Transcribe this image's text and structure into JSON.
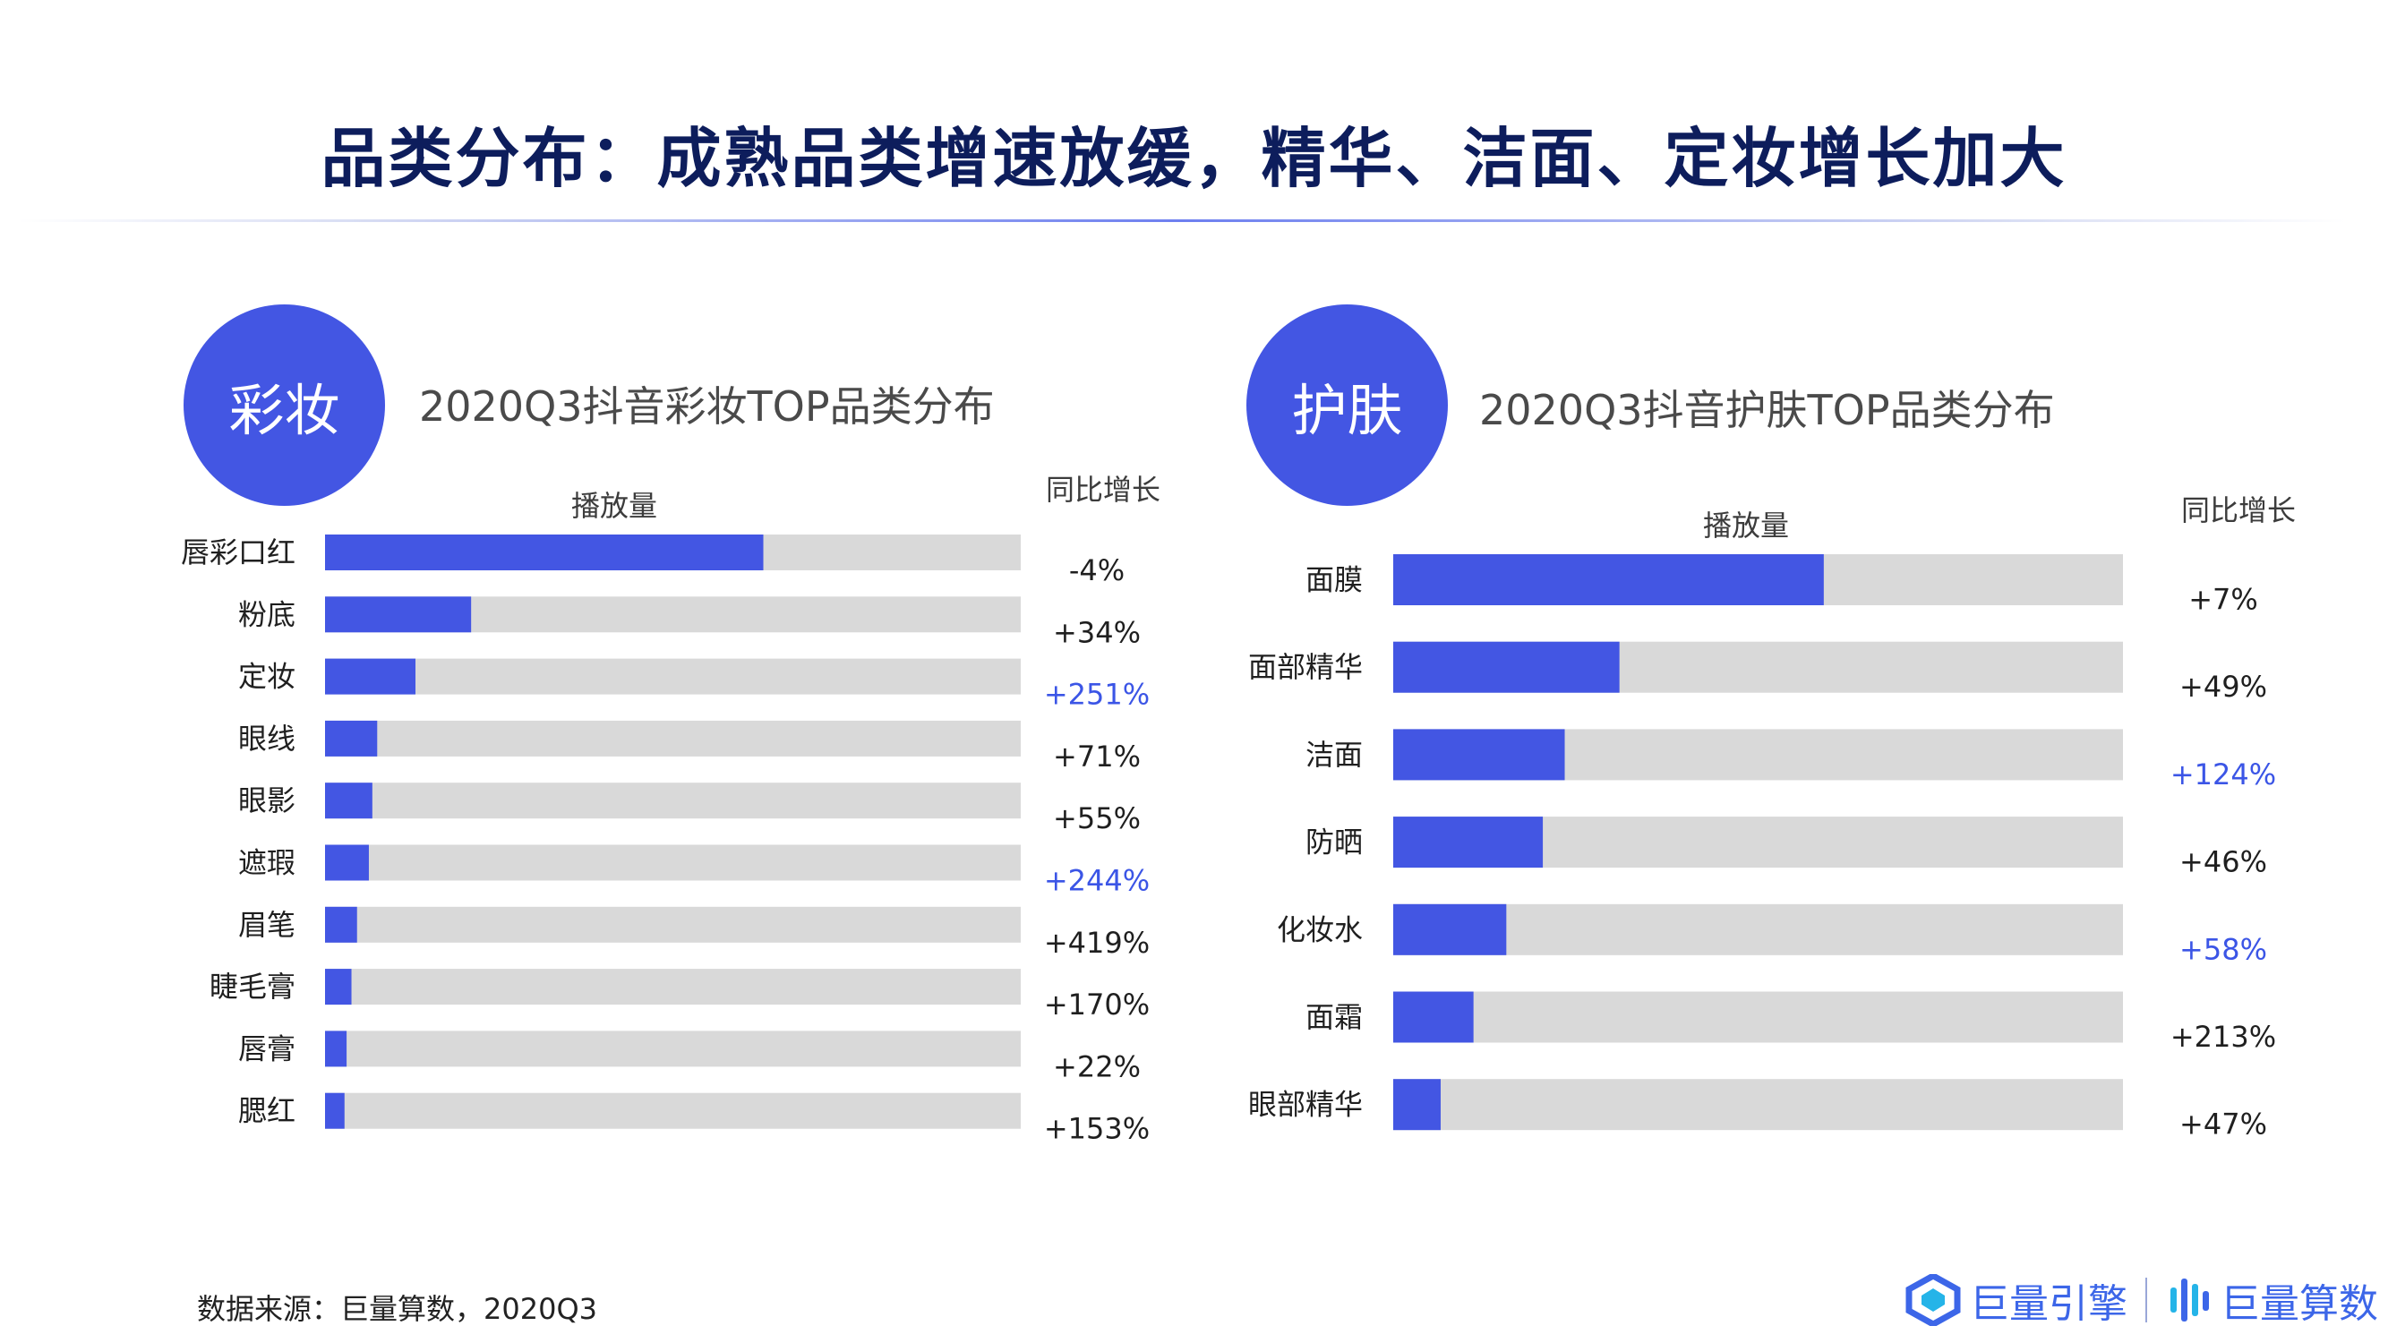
{
  "title": "品类分布：成熟品类增速放缓，精华、洁面、定妆增长加大",
  "colors": {
    "bar": "#4356e3",
    "track": "#d9d9d9",
    "highlight": "#3b55e6",
    "text": "#1f1f1f"
  },
  "chart_data": [
    {
      "type": "bar",
      "orientation": "horizontal",
      "badge": "彩妆",
      "title": "2020Q3抖音彩妆TOP品类分布",
      "bar_header": "播放量",
      "growth_header": "同比增长",
      "categories": [
        "唇彩口红",
        "粉底",
        "定妆",
        "眼线",
        "眼影",
        "遮瑕",
        "眉笔",
        "睫毛膏",
        "唇膏",
        "腮红"
      ],
      "values": [
        0.63,
        0.21,
        0.13,
        0.075,
        0.068,
        0.063,
        0.046,
        0.038,
        0.031,
        0.028
      ],
      "growth": [
        "-4%",
        "+34%",
        "+251%",
        "+71%",
        "+55%",
        "+244%",
        "+419%",
        "+170%",
        "+22%",
        "+153%"
      ],
      "highlight": [
        false,
        false,
        true,
        false,
        false,
        true,
        false,
        false,
        false,
        false
      ],
      "xlim": [
        0,
        1
      ]
    },
    {
      "type": "bar",
      "orientation": "horizontal",
      "badge": "护肤",
      "title": "2020Q3抖音护肤TOP品类分布",
      "bar_header": "播放量",
      "growth_header": "同比增长",
      "categories": [
        "面膜",
        "面部精华",
        "洁面",
        "防晒",
        "化妆水",
        "面霜",
        "眼部精华"
      ],
      "values": [
        0.59,
        0.31,
        0.235,
        0.205,
        0.155,
        0.11,
        0.065
      ],
      "growth": [
        "+7%",
        "+49%",
        "+124%",
        "+46%",
        "+58%",
        "+213%",
        "+47%"
      ],
      "highlight": [
        false,
        false,
        true,
        false,
        true,
        false,
        false
      ],
      "xlim": [
        0,
        1
      ]
    }
  ],
  "footer": "数据来源：巨量算数，2020Q3",
  "logos": {
    "left": "巨量引擎",
    "right": "巨量算数"
  }
}
